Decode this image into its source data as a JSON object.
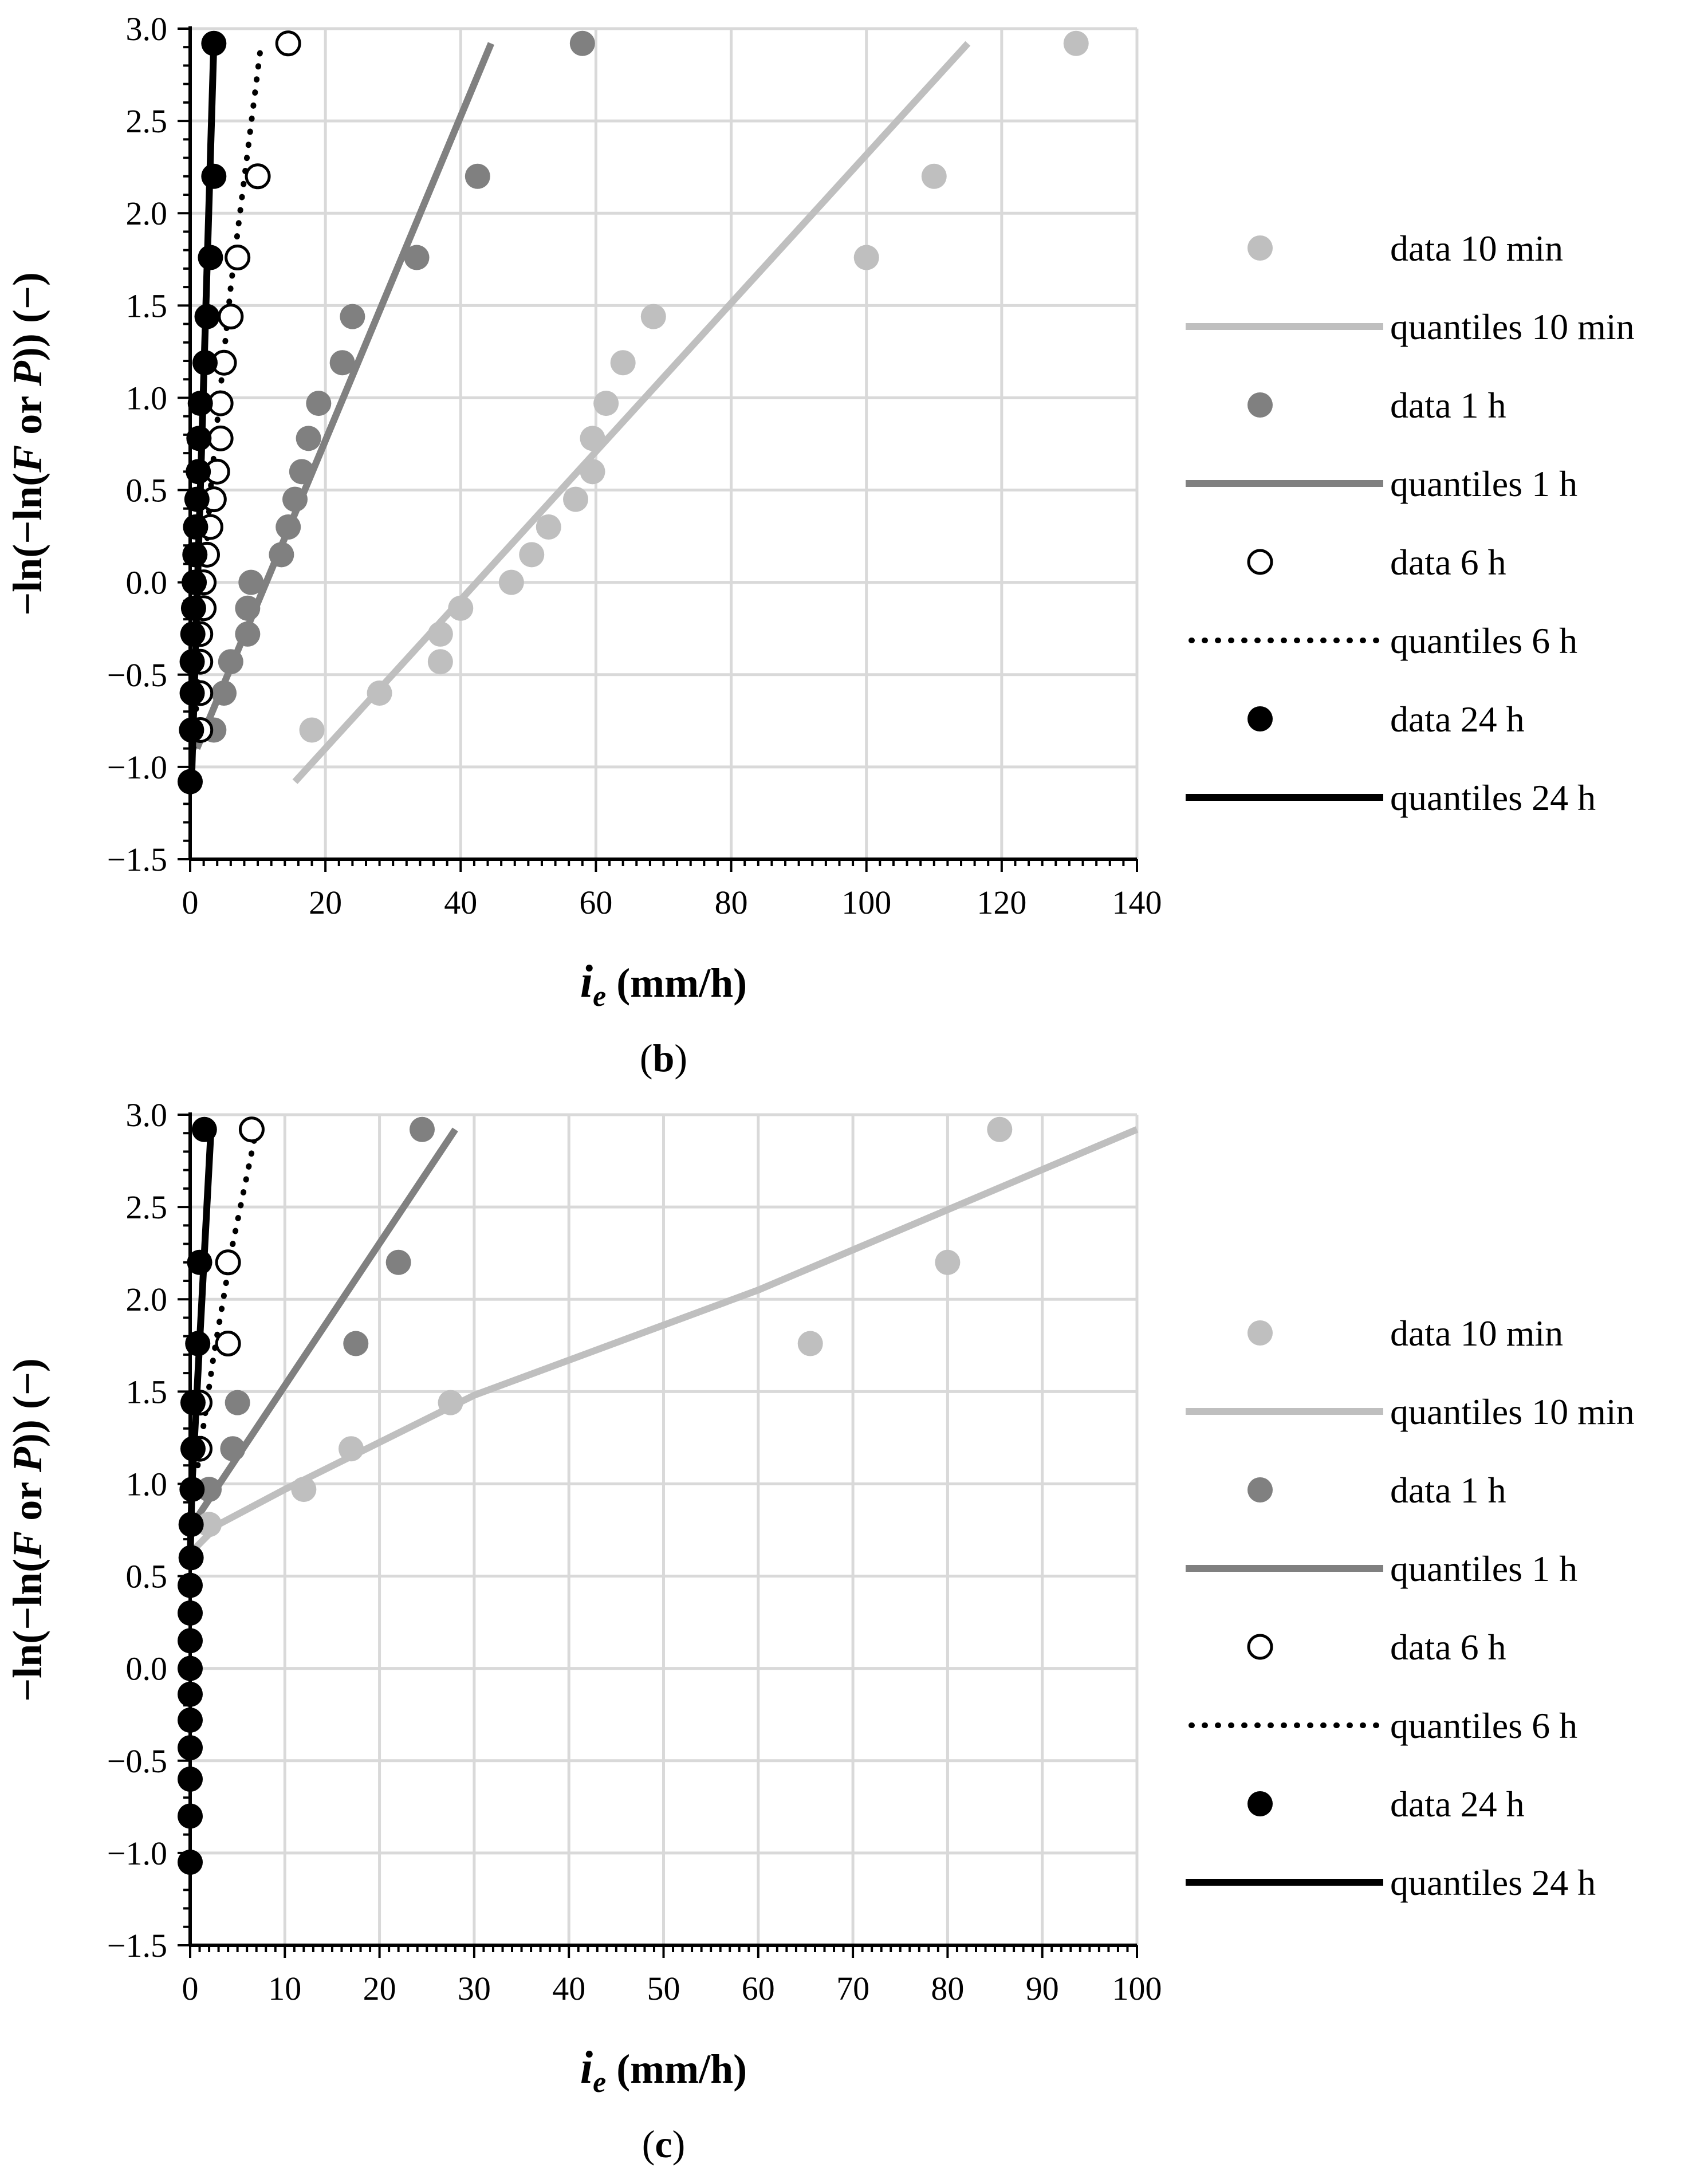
{
  "figure": {
    "colors": {
      "light": "#bfbfbf",
      "mid": "#808080",
      "dark": "#000000",
      "grid": "#d9d9d9"
    }
  },
  "chart_data": [
    {
      "type": "scatter",
      "panel_label": "b",
      "ylabel_parts": {
        "pre": "−ln(−ln(",
        "F": "F",
        "mid": " or ",
        "P": "P",
        "post": ")) (−)"
      },
      "xlabel_parts": {
        "i": "i",
        "sub": "e",
        "unit": " (mm/h)"
      },
      "xlim": [
        0,
        140
      ],
      "ylim": [
        -1.5,
        3.0
      ],
      "xticks": [
        0,
        20,
        40,
        60,
        80,
        100,
        120,
        140
      ],
      "yticks": [
        3.0,
        2.5,
        2.0,
        1.5,
        1.0,
        0.5,
        0.0,
        -0.5,
        -1.0,
        -1.5
      ],
      "xtick_labels": [
        "0",
        "20",
        "40",
        "60",
        "80",
        "100",
        "120",
        "140"
      ],
      "ytick_labels": [
        "3.0",
        "2.5",
        "2.0",
        "1.5",
        "1.0",
        "0.5",
        "0.0",
        "−0.5",
        "−1.0",
        "−1.5"
      ],
      "legend": [
        {
          "label": "data 10 min",
          "kind": "point-filled",
          "color": "#bfbfbf"
        },
        {
          "label": "quantiles 10 min",
          "kind": "line-solid",
          "color": "#bfbfbf"
        },
        {
          "label": "data 1 h",
          "kind": "point-filled",
          "color": "#808080"
        },
        {
          "label": "quantiles 1 h",
          "kind": "line-solid",
          "color": "#808080"
        },
        {
          "label": "data 6 h",
          "kind": "point-open",
          "color": "#000000"
        },
        {
          "label": "quantiles 6 h",
          "kind": "line-dotted",
          "color": "#000000"
        },
        {
          "label": "data 24 h",
          "kind": "point-filled",
          "color": "#000000"
        },
        {
          "label": "quantiles 24 h",
          "kind": "line-solid",
          "color": "#000000"
        }
      ],
      "series": [
        {
          "name": "data 10 min",
          "kind": "points",
          "fill": "#bfbfbf",
          "x": [
            18,
            28,
            37,
            37,
            40,
            47.5,
            50.5,
            53,
            57,
            59.5,
            59.5,
            61.5,
            64,
            68.5,
            100,
            110,
            131
          ],
          "y": [
            -0.8,
            -0.6,
            -0.43,
            -0.28,
            -0.14,
            0.0,
            0.15,
            0.3,
            0.45,
            0.6,
            0.78,
            0.97,
            1.19,
            1.44,
            1.76,
            2.2,
            2.92
          ]
        },
        {
          "name": "quantiles 10 min",
          "kind": "line",
          "stroke": "#bfbfbf",
          "x": [
            15.5,
            115
          ],
          "y": [
            -1.08,
            2.92
          ]
        },
        {
          "name": "data 1 h",
          "kind": "points",
          "fill": "#808080",
          "x": [
            3.5,
            5,
            6,
            8.5,
            8.5,
            9,
            13.5,
            14.5,
            15.5,
            16.5,
            17.5,
            19,
            22.5,
            24,
            33.5,
            42.5,
            58
          ],
          "y": [
            -0.8,
            -0.6,
            -0.43,
            -0.28,
            -0.14,
            0.0,
            0.15,
            0.3,
            0.45,
            0.6,
            0.78,
            0.97,
            1.19,
            1.44,
            1.76,
            2.2,
            2.92
          ]
        },
        {
          "name": "quantiles 1 h",
          "kind": "line",
          "stroke": "#808080",
          "x": [
            1.0,
            44.5
          ],
          "y": [
            -0.9,
            2.92
          ]
        },
        {
          "name": "data 6 h",
          "kind": "points",
          "fill": "#ffffff",
          "stroke": "#000000",
          "x": [
            1.5,
            1.5,
            1.5,
            1.5,
            2.0,
            2.0,
            2.5,
            3.0,
            3.5,
            4.0,
            4.5,
            4.5,
            5.0,
            6.0,
            7.0,
            10.0,
            14.5
          ],
          "y": [
            -0.8,
            -0.6,
            -0.43,
            -0.28,
            -0.14,
            0.0,
            0.15,
            0.3,
            0.45,
            0.6,
            0.78,
            0.97,
            1.19,
            1.44,
            1.76,
            2.2,
            2.92
          ]
        },
        {
          "name": "quantiles 6 h",
          "kind": "line",
          "stroke": "#000000",
          "dash": "dotted",
          "x": [
            0.5,
            3.0,
            6.0,
            10.5
          ],
          "y": [
            -0.9,
            0.5,
            1.6,
            2.92
          ]
        },
        {
          "name": "data 24 h",
          "kind": "points",
          "fill": "#000000",
          "x": [
            0.0,
            0.2,
            0.3,
            0.3,
            0.4,
            0.5,
            0.6,
            0.7,
            0.8,
            1.0,
            1.2,
            1.3,
            1.5,
            2.2,
            2.5,
            3.0,
            3.5
          ],
          "y": [
            -1.08,
            -0.8,
            -0.6,
            -0.43,
            -0.28,
            -0.14,
            0.0,
            0.15,
            0.3,
            0.45,
            0.6,
            0.78,
            0.97,
            1.19,
            1.44,
            1.76,
            2.2
          ]
        },
        {
          "name": "data 24 h top",
          "kind": "points",
          "fill": "#000000",
          "x": [
            3.5
          ],
          "y": [
            2.92
          ]
        },
        {
          "name": "quantiles 24 h",
          "kind": "line",
          "stroke": "#000000",
          "x": [
            0.2,
            3.5
          ],
          "y": [
            -1.08,
            2.92
          ]
        }
      ]
    },
    {
      "type": "scatter",
      "panel_label": "c",
      "ylabel_parts": {
        "pre": "−ln(−ln(",
        "F": "F",
        "mid": " or ",
        "P": "P",
        "post": ")) (−)"
      },
      "xlabel_parts": {
        "i": "i",
        "sub": "e",
        "unit": " (mm/h)"
      },
      "xlim": [
        0,
        100
      ],
      "ylim": [
        -1.5,
        3.0
      ],
      "xticks": [
        0,
        10,
        20,
        30,
        40,
        50,
        60,
        70,
        80,
        90,
        100
      ],
      "yticks": [
        3.0,
        2.5,
        2.0,
        1.5,
        1.0,
        0.5,
        0.0,
        -0.5,
        -1.0,
        -1.5
      ],
      "xtick_labels": [
        "0",
        "10",
        "20",
        "30",
        "40",
        "50",
        "60",
        "70",
        "80",
        "90",
        "100"
      ],
      "ytick_labels": [
        "3.0",
        "2.5",
        "2.0",
        "1.5",
        "1.0",
        "0.5",
        "0.0",
        "−0.5",
        "−1.0",
        "−1.5"
      ],
      "legend": [
        {
          "label": "data 10 min",
          "kind": "point-filled",
          "color": "#bfbfbf"
        },
        {
          "label": "quantiles 10 min",
          "kind": "line-solid",
          "color": "#bfbfbf"
        },
        {
          "label": "data 1 h",
          "kind": "point-filled",
          "color": "#808080"
        },
        {
          "label": "quantiles 1 h",
          "kind": "line-solid",
          "color": "#808080"
        },
        {
          "label": "data 6 h",
          "kind": "point-open",
          "color": "#000000"
        },
        {
          "label": "quantiles 6 h",
          "kind": "line-dotted",
          "color": "#000000"
        },
        {
          "label": "data 24 h",
          "kind": "point-filled",
          "color": "#000000"
        },
        {
          "label": "quantiles 24 h",
          "kind": "line-solid",
          "color": "#000000"
        }
      ],
      "series": [
        {
          "name": "data 10 min",
          "kind": "points",
          "fill": "#bfbfbf",
          "x": [
            2.0,
            12.0,
            17.0,
            27.5,
            65.5,
            80.0,
            85.5
          ],
          "y": [
            0.78,
            0.97,
            1.19,
            1.44,
            1.76,
            2.2,
            2.92
          ]
        },
        {
          "name": "quantiles 10 min",
          "kind": "line",
          "stroke": "#bfbfbf",
          "x": [
            0.5,
            3.0,
            10.0,
            30.0,
            60.0,
            100.0
          ],
          "y": [
            0.65,
            0.78,
            0.97,
            1.48,
            2.05,
            2.92
          ]
        },
        {
          "name": "data 1 h",
          "kind": "points",
          "fill": "#808080",
          "x": [
            2.0,
            4.5,
            5.0,
            17.5,
            22.0,
            24.5
          ],
          "y": [
            0.97,
            1.19,
            1.44,
            1.76,
            2.2,
            2.92
          ]
        },
        {
          "name": "quantiles 1 h",
          "kind": "line",
          "stroke": "#808080",
          "x": [
            0.5,
            28.0
          ],
          "y": [
            0.8,
            2.92
          ]
        },
        {
          "name": "data 6 h",
          "kind": "points",
          "fill": "#ffffff",
          "stroke": "#000000",
          "x": [
            1.0,
            1.0,
            4.0,
            4.0,
            6.5
          ],
          "y": [
            1.19,
            1.44,
            1.76,
            2.2,
            2.92
          ]
        },
        {
          "name": "quantiles 6 h",
          "kind": "line",
          "stroke": "#000000",
          "dash": "dotted",
          "x": [
            0.8,
            2.5,
            4.5,
            7.0
          ],
          "y": [
            1.1,
            1.7,
            2.3,
            2.92
          ]
        },
        {
          "name": "data 24 h",
          "kind": "points",
          "fill": "#000000",
          "x": [
            0.0,
            0.0,
            0.0,
            0.0,
            0.0,
            0.0,
            0.0,
            0.0,
            0.0,
            0.0,
            0.1,
            0.1,
            0.2,
            0.3,
            0.3,
            0.8,
            1.0,
            1.5
          ],
          "y": [
            -1.05,
            -0.8,
            -0.6,
            -0.43,
            -0.28,
            -0.14,
            0.0,
            0.15,
            0.3,
            0.45,
            0.6,
            0.78,
            0.97,
            1.19,
            1.44,
            1.76,
            2.2,
            2.92
          ]
        },
        {
          "name": "quantiles 24 h",
          "kind": "line",
          "stroke": "#000000",
          "x": [
            0.0,
            0.2,
            2.2
          ],
          "y": [
            0.6,
            1.0,
            2.92
          ]
        }
      ]
    }
  ]
}
